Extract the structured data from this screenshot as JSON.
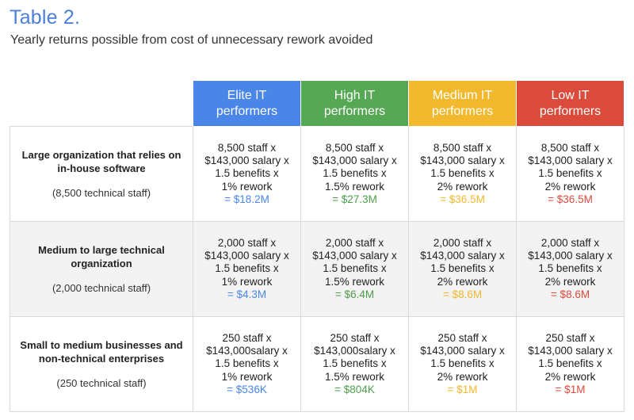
{
  "title": "Table 2.",
  "subtitle": "Yearly returns possible from cost of unnecessary rework avoided",
  "colors": {
    "title": "#4a7fd8",
    "elite": "#4a86e8",
    "high": "#57a854",
    "medium": "#f2b82e",
    "low": "#db4b3c"
  },
  "columns": [
    {
      "key": "elite",
      "label_line1": "Elite IT",
      "label_line2": "performers"
    },
    {
      "key": "high",
      "label_line1": "High IT",
      "label_line2": "performers"
    },
    {
      "key": "medium",
      "label_line1": "Medium IT",
      "label_line2": "performers"
    },
    {
      "key": "low",
      "label_line1": "Low IT",
      "label_line2": "performers"
    }
  ],
  "rows": [
    {
      "title_line1": "Large organization that relies on",
      "title_line2": "in-house software",
      "sub": "(8,500 technical staff)",
      "cells": [
        {
          "staff": "8,500 staff x",
          "salary": "$143,000 salary x",
          "benefits": "1.5 benefits x",
          "rework": "1% rework",
          "result": "= $18.2M"
        },
        {
          "staff": "8,500 staff x",
          "salary": "$143,000 salary x",
          "benefits": "1.5 benefits x",
          "rework": "1.5% rework",
          "result": "= $27.3M"
        },
        {
          "staff": "8,500 staff x",
          "salary": "$143,000 salary x",
          "benefits": "1.5 benefits x",
          "rework": "2% rework",
          "result": "= $36.5M"
        },
        {
          "staff": "8,500 staff x",
          "salary": "$143,000 salary x",
          "benefits": "1.5 benefits x",
          "rework": "2% rework",
          "result": "= $36.5M"
        }
      ]
    },
    {
      "title_line1": "Medium to large technical",
      "title_line2": "organization",
      "sub": "(2,000 technical staff)",
      "cells": [
        {
          "staff": "2,000 staff x",
          "salary": "$143,000 salary x",
          "benefits": "1.5 benefits x",
          "rework": "1% rework",
          "result": "= $4.3M"
        },
        {
          "staff": "2,000 staff x",
          "salary": "$143,000 salary x",
          "benefits": "1.5 benefits x",
          "rework": "1.5% rework",
          "result": "= $6.4M"
        },
        {
          "staff": "2,000 staff x",
          "salary": "$143,000 salary x",
          "benefits": "1.5 benefits x",
          "rework": "2% rework",
          "result": "= $8.6M"
        },
        {
          "staff": "2,000 staff x",
          "salary": "$143,000 salary x",
          "benefits": "1.5 benefits x",
          "rework": "2% rework",
          "result": "= $8.6M"
        }
      ]
    },
    {
      "title_line1": "Small to medium businesses and",
      "title_line2": "non-technical enterprises",
      "sub": "(250 technical staff)",
      "cells": [
        {
          "staff": "250 staff x",
          "salary": "$143,000salary x",
          "benefits": "1.5 benefits x",
          "rework": "1% rework",
          "result": "= $536K"
        },
        {
          "staff": "250 staff x",
          "salary": "$143,000salary x",
          "benefits": "1.5 benefits x",
          "rework": "1.5% rework",
          "result": "= $804K"
        },
        {
          "staff": "250 staff x",
          "salary": "$143,000 salary x",
          "benefits": "1.5 benefits x",
          "rework": "2% rework",
          "result": "= $1M"
        },
        {
          "staff": "250 staff x",
          "salary": "$143,000 salary x",
          "benefits": "1.5 benefits x",
          "rework": "2% rework",
          "result": "= $1M"
        }
      ]
    }
  ]
}
